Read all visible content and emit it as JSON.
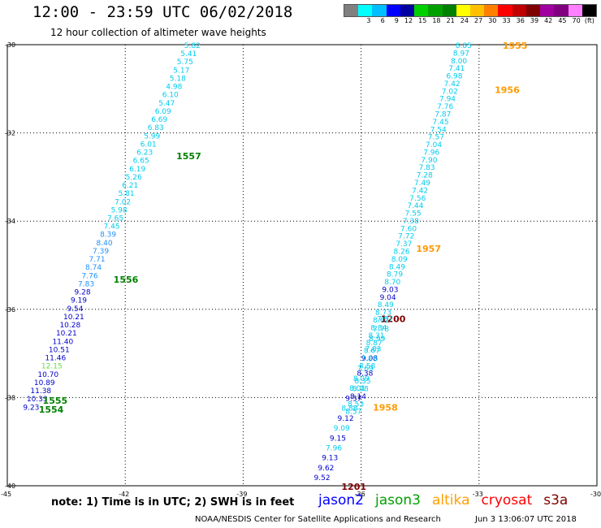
{
  "header": {
    "title": "12:00 - 23:59 UTC 06/02/2018",
    "subtitle": "12 hour collection of altimeter wave heights"
  },
  "colorbar": {
    "colors": [
      "#808080",
      "#00ffff",
      "#00bfff",
      "#0000ff",
      "#0000a0",
      "#00d000",
      "#00a000",
      "#008000",
      "#ffff00",
      "#ffc000",
      "#ff8000",
      "#ff0000",
      "#c00000",
      "#800000",
      "#a000a0",
      "#800080",
      "#ff80ff",
      "#000000"
    ],
    "labels": [
      "3",
      "6",
      "9",
      "12",
      "15",
      "18",
      "21",
      "24",
      "27",
      "30",
      "33",
      "36",
      "39",
      "42",
      "45",
      "70",
      "(ft)"
    ]
  },
  "map": {
    "lat_ticks": [
      "-30",
      "-32",
      "-34",
      "-36",
      "-38",
      "-40"
    ],
    "lon_ticks": [
      "-45",
      "-42",
      "-39",
      "-36",
      "-33",
      "-30"
    ]
  },
  "track_west": {
    "values": [
      "5.82",
      "5.41",
      "5.75",
      "5.17",
      "5.18",
      "4.98",
      "6.10",
      "5.47",
      "6.09",
      "6.69",
      "6.83",
      "5.99",
      "6.01",
      "6.23",
      "6.65",
      "6.19",
      "5.26",
      "6.21",
      "5.81",
      "7.02",
      "5.98",
      "7.65",
      "7.45",
      "8.39",
      "8.40",
      "7.39",
      "7.71",
      "8.74",
      "7.76",
      "7.83",
      "9.28",
      "9.19",
      "9.54",
      "10.21",
      "10.28",
      "10.21",
      "11.40",
      "10.51",
      "11.46",
      "12.15",
      "10.70",
      "10.89",
      "11.38",
      "10.33",
      "9.23"
    ],
    "colors": [
      "cyan",
      "cyan",
      "cyan",
      "cyan",
      "cyan",
      "cyan",
      "cyan",
      "cyan",
      "cyan",
      "cyan",
      "cyan",
      "cyan",
      "cyan",
      "cyan",
      "cyan",
      "cyan",
      "cyan",
      "cyan",
      "cyan",
      "cyan",
      "cyan",
      "cyan",
      "cyan",
      "lblue",
      "lblue",
      "lblue",
      "lblue",
      "lblue",
      "lblue",
      "lblue",
      "blue",
      "blue",
      "blue",
      "blue",
      "blue",
      "blue",
      "blue",
      "blue",
      "blue",
      "lgreen",
      "blue",
      "blue",
      "blue",
      "blue",
      "blue"
    ],
    "times": [
      {
        "text": "1557",
        "lat": -32.5,
        "lon": -40.7
      },
      {
        "text": "1556",
        "lat": -35.3,
        "lon": -42.3
      },
      {
        "text": "1555",
        "lat": -38.05,
        "lon": -44.1
      },
      {
        "text": "1554",
        "lat": -38.25,
        "lon": -44.2
      }
    ]
  },
  "track_east_a": {
    "values": [
      "8.85",
      "8.97",
      "8.00",
      "7.41",
      "6.98",
      "7.42",
      "7.02",
      "7.94",
      "7.76",
      "7.87",
      "7.45",
      "7.54",
      "7.57",
      "7.04",
      "7.96",
      "7.90",
      "7.83",
      "7.28",
      "7.49",
      "7.42",
      "7.56",
      "7.44",
      "7.55",
      "7.38",
      "7.60",
      "7.72",
      "7.37",
      "8.26",
      "8.09",
      "8.49",
      "8.79",
      "8.70",
      "9.03",
      "9.04",
      "8.49",
      "8.73",
      "8.62",
      "8.84",
      "8.31",
      "8.87",
      "8.67",
      "9.08",
      "8.58",
      "8.38",
      "8.35",
      "8.38",
      "8.14",
      "8.53",
      "8.57"
    ],
    "colors": [
      "cyan",
      "cyan",
      "cyan",
      "cyan",
      "cyan",
      "cyan",
      "cyan",
      "cyan",
      "cyan",
      "cyan",
      "cyan",
      "cyan",
      "cyan",
      "cyan",
      "cyan",
      "cyan",
      "cyan",
      "cyan",
      "cyan",
      "cyan",
      "cyan",
      "cyan",
      "cyan",
      "cyan",
      "cyan",
      "cyan",
      "cyan",
      "cyan",
      "cyan",
      "cyan",
      "cyan",
      "cyan",
      "blue",
      "blue",
      "cyan",
      "cyan",
      "cyan",
      "cyan",
      "cyan",
      "cyan",
      "cyan",
      "blue",
      "cyan",
      "blue",
      "cyan",
      "cyan",
      "blue",
      "cyan",
      "cyan"
    ],
    "times": [
      {
        "text": "1955",
        "lat": -30.0,
        "lon": -32.4
      },
      {
        "text": "1956",
        "lat": -31.0,
        "lon": -32.6
      },
      {
        "text": "1957",
        "lat": -34.6,
        "lon": -34.6
      },
      {
        "text": "1200",
        "lat": -36.2,
        "lon": -35.5
      }
    ]
  },
  "track_east_b": {
    "values": [
      "7.97",
      "7.78",
      "8.99",
      "7.83",
      "7.88",
      "7.69",
      "8.09",
      "8.01",
      "9.37",
      "8.88",
      "9.12",
      "9.09",
      "9.15",
      "7.96",
      "9.13",
      "9.62",
      "9.52"
    ],
    "colors": [
      "cyan",
      "cyan",
      "cyan",
      "cyan",
      "cyan",
      "cyan",
      "cyan",
      "cyan",
      "blue",
      "cyan",
      "blue",
      "cyan",
      "blue",
      "cyan",
      "blue",
      "blue",
      "blue"
    ],
    "times": [
      {
        "text": "1958",
        "lat": -38.2,
        "lon": -35.7
      },
      {
        "text": "1201",
        "lat": -40.0,
        "lon": -36.5
      }
    ]
  },
  "footer": {
    "note": "note:  1) Time is in UTC;  2) SWH is in feet",
    "satellites": [
      {
        "name": "jason2",
        "color": "#0000ff"
      },
      {
        "name": "jason3",
        "color": "#00a000"
      },
      {
        "name": "altika",
        "color": "#ffa000"
      },
      {
        "name": "cryosat",
        "color": "#ff0000"
      },
      {
        "name": "s3a",
        "color": "#800000"
      }
    ],
    "credit": "NOAA/NESDIS Center for Satellite Applications and Research",
    "generated": "Jun  3 13:06:07 UTC 2018"
  }
}
